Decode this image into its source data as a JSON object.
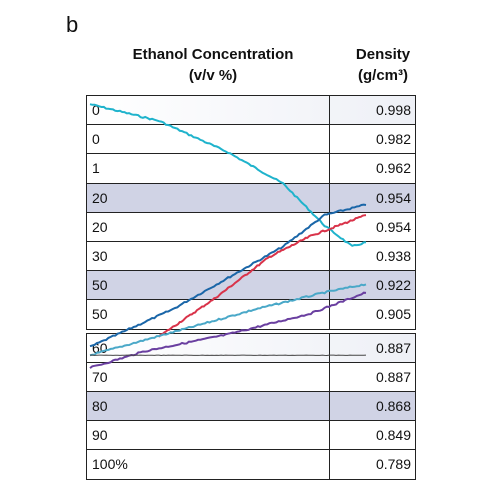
{
  "panel_label": "b",
  "header": {
    "concentration": [
      "Ethanol Concentration",
      "(v/v %)"
    ],
    "density": [
      "Density",
      "(g/cm³)"
    ]
  },
  "rows": [
    {
      "concentration": "0",
      "density": "0.998",
      "shade": "light"
    },
    {
      "concentration": "0",
      "density": "0.982",
      "shade": "none"
    },
    {
      "concentration": "1",
      "density": "0.962",
      "shade": "none"
    },
    {
      "concentration": "20",
      "density": "0.954",
      "shade": "dark"
    },
    {
      "concentration": "20",
      "density": "0.954",
      "shade": "none"
    },
    {
      "concentration": "30",
      "density": "0.938",
      "shade": "none"
    },
    {
      "concentration": "50",
      "density": "0.922",
      "shade": "dark"
    },
    {
      "concentration": "50",
      "density": "0.905",
      "shade": "none"
    },
    {
      "concentration": "60",
      "density": "0.887",
      "shade": "light"
    },
    {
      "concentration": "70",
      "density": "0.887",
      "shade": "none"
    },
    {
      "concentration": "80",
      "density": "0.868",
      "shade": "dark"
    },
    {
      "concentration": "90",
      "density": "0.849",
      "shade": "none"
    },
    {
      "concentration": "100%",
      "density": "0.789",
      "shade": "none"
    }
  ],
  "chart_data": {
    "type": "line",
    "title": "",
    "xlabel": "",
    "ylabel": "",
    "series": [
      {
        "color": "#1fb3cc",
        "points": [
          [
            0,
            0.998
          ],
          [
            0.25,
            0.99
          ],
          [
            0.5,
            0.975
          ],
          [
            0.7,
            0.96
          ],
          [
            0.85,
            0.94
          ],
          [
            0.95,
            0.93
          ],
          [
            1.0,
            0.932
          ]
        ]
      },
      {
        "color": "#1a66a8",
        "points": [
          [
            0,
            0.882
          ],
          [
            0.3,
            0.9
          ],
          [
            0.5,
            0.915
          ],
          [
            0.7,
            0.93
          ],
          [
            0.85,
            0.945
          ],
          [
            1.0,
            0.95
          ]
        ]
      },
      {
        "color": "#d9334a",
        "points": [
          [
            0.25,
            0.887
          ],
          [
            0.45,
            0.905
          ],
          [
            0.65,
            0.925
          ],
          [
            0.8,
            0.935
          ],
          [
            1.0,
            0.945
          ]
        ]
      },
      {
        "color": "#4aa8c8",
        "points": [
          [
            0,
            0.878
          ],
          [
            0.3,
            0.889
          ],
          [
            0.6,
            0.9
          ],
          [
            0.85,
            0.908
          ],
          [
            1.0,
            0.912
          ]
        ]
      },
      {
        "color": "#6a3fa0",
        "points": [
          [
            0,
            0.872
          ],
          [
            0.2,
            0.88
          ],
          [
            0.5,
            0.888
          ],
          [
            0.8,
            0.898
          ],
          [
            1.0,
            0.908
          ]
        ]
      },
      {
        "color": "#444444",
        "points": [
          [
            0,
            0.878
          ],
          [
            0.5,
            0.878
          ],
          [
            1.0,
            0.878
          ]
        ]
      }
    ]
  }
}
